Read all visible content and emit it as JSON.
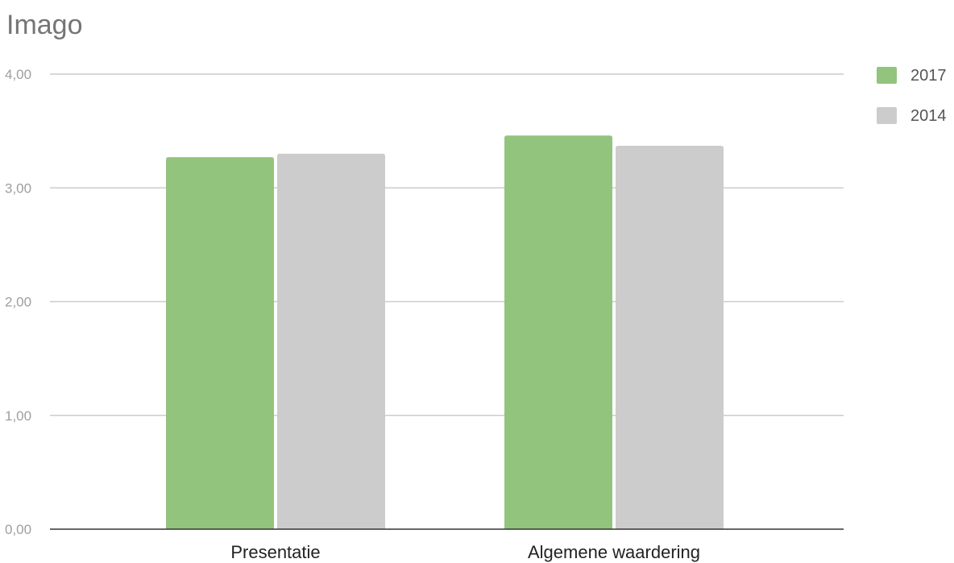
{
  "chart_data": {
    "type": "bar",
    "title": "Imago",
    "categories": [
      "Presentatie",
      "Algemene waardering"
    ],
    "series": [
      {
        "name": "2017",
        "color": "#93c47d",
        "values": [
          3.27,
          3.46
        ]
      },
      {
        "name": "2014",
        "color": "#cccccc",
        "values": [
          3.3,
          3.37
        ]
      }
    ],
    "ylim": [
      0,
      4
    ],
    "yticks": [
      "0,00",
      "1,00",
      "2,00",
      "3,00",
      "4,00"
    ],
    "ytick_values": [
      0,
      1,
      2,
      3,
      4
    ],
    "xlabel": "",
    "ylabel": "",
    "grid": true,
    "legend_position": "top-right"
  }
}
